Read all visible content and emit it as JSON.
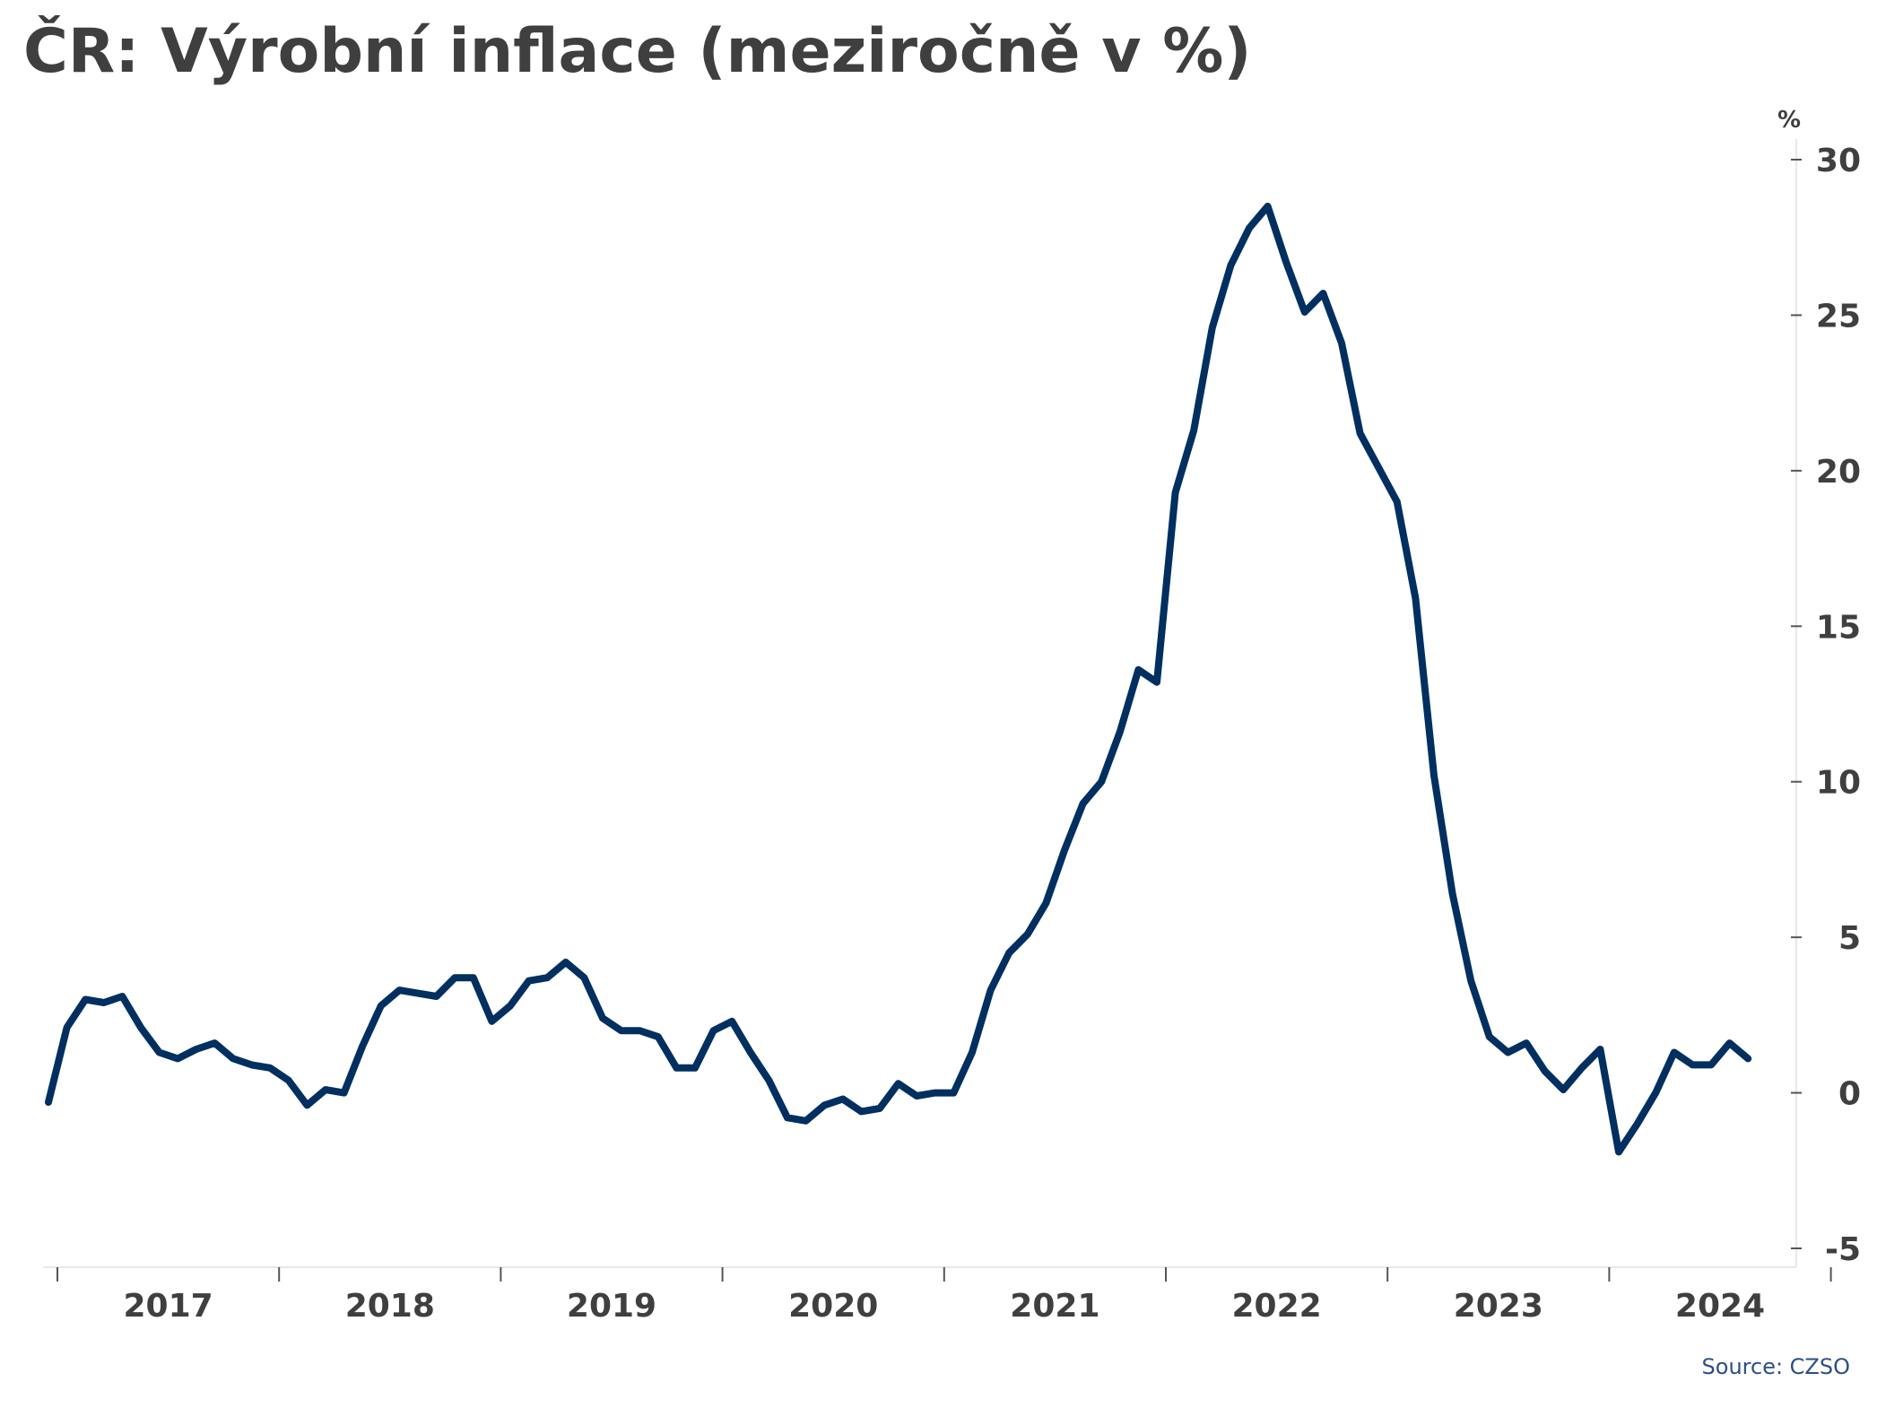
{
  "title": "ČR: Výrobní inflace (meziročně v %)",
  "source": "Source: CZSO",
  "colors": {
    "line": "#002f60",
    "text": "#3f3f3f",
    "axis": "#e8e8e8",
    "source": "#2c4f85"
  },
  "chart_data": {
    "type": "line",
    "title": "ČR: Výrobní inflace (meziročně v %)",
    "xlabel": "",
    "ylabel": "%",
    "ylim": [
      -5,
      30
    ],
    "yticks": [
      30,
      25,
      20,
      15,
      10,
      5,
      0,
      -5
    ],
    "ytick_labels": [
      "30",
      "25",
      "20",
      "15",
      "10",
      "5",
      "0",
      "-5"
    ],
    "xtick_labels": [
      "2017",
      "2018",
      "2019",
      "2020",
      "2021",
      "2022",
      "2023",
      "2024"
    ],
    "y_axis_position": "right",
    "grid": false,
    "x_start": "2017-01",
    "frequency": "monthly",
    "series": [
      {
        "values": [
          -0.3,
          2.1,
          3.0,
          2.9,
          3.1,
          2.1,
          1.3,
          1.1,
          1.4,
          1.6,
          1.1,
          0.9,
          0.8,
          0.4,
          -0.4,
          0.1,
          0.0,
          1.5,
          2.8,
          3.3,
          3.2,
          3.1,
          3.7,
          3.7,
          2.3,
          2.8,
          3.6,
          3.7,
          4.2,
          3.7,
          2.4,
          2.0,
          2.0,
          1.8,
          0.8,
          0.8,
          2.0,
          2.3,
          1.3,
          0.4,
          -0.8,
          -0.9,
          -0.4,
          -0.2,
          -0.6,
          -0.5,
          0.3,
          -0.1,
          0.0,
          0.0,
          1.3,
          3.3,
          4.5,
          5.1,
          6.1,
          7.8,
          9.3,
          10.0,
          11.6,
          13.6,
          13.2,
          19.3,
          21.3,
          24.6,
          26.6,
          27.8,
          28.5,
          26.7,
          25.1,
          25.7,
          24.1,
          21.2,
          20.1,
          19.0,
          15.9,
          10.2,
          6.4,
          3.6,
          1.8,
          1.3,
          1.6,
          0.7,
          0.1,
          0.8,
          1.4,
          -1.9,
          -1.0,
          0.0,
          1.3,
          0.9,
          0.9,
          1.6,
          1.1
        ]
      }
    ]
  }
}
